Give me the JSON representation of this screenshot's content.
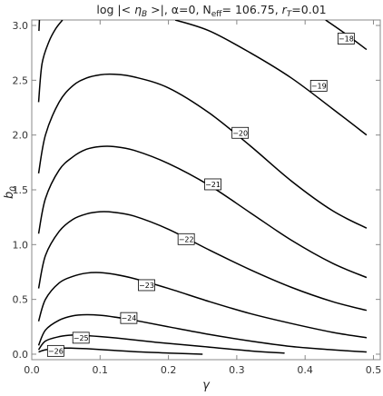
{
  "chart_data": {
    "type": "contour",
    "title": "log |< η_B >|, α=0,  N_eff= 106.75,  r_T=0.01",
    "title_parts": {
      "prefix": "log |< ",
      "eta": "η",
      "eta_sub": "B",
      "middle": " >|, α=0,  N",
      "neff_sub": "eff",
      "neff_val": "= 106.75,  ",
      "r": "r",
      "r_sub": "T",
      "r_val": "=0.01"
    },
    "xlabel": "γ",
    "ylabel": "b",
    "ylabel_sub": "0",
    "xlim": [
      0,
      0.51
    ],
    "ylim": [
      -0.05,
      3.05
    ],
    "xticks": [
      0.0,
      0.1,
      0.2,
      0.3,
      0.4,
      0.5
    ],
    "xtick_labels": [
      "0.0",
      "0.1",
      "0.2",
      "0.3",
      "0.4",
      "0.5"
    ],
    "yticks": [
      0.0,
      0.5,
      1.0,
      1.5,
      2.0,
      2.5,
      3.0
    ],
    "ytick_labels": [
      "0.0",
      "0.5",
      "1.0",
      "1.5",
      "2.0",
      "2.5",
      "3.0"
    ],
    "contours": [
      {
        "level": -26,
        "label": "−26",
        "label_at": [
          0.035,
          0.03
        ],
        "points": [
          [
            0.01,
            0.02
          ],
          [
            0.02,
            0.04
          ],
          [
            0.04,
            0.055
          ],
          [
            0.06,
            0.055
          ],
          [
            0.08,
            0.05
          ],
          [
            0.12,
            0.035
          ],
          [
            0.16,
            0.02
          ],
          [
            0.2,
            0.01
          ],
          [
            0.25,
            0.0
          ]
        ]
      },
      {
        "level": -25,
        "label": "−25",
        "label_at": [
          0.072,
          0.15
        ],
        "points": [
          [
            0.01,
            0.04
          ],
          [
            0.02,
            0.12
          ],
          [
            0.04,
            0.16
          ],
          [
            0.06,
            0.175
          ],
          [
            0.08,
            0.17
          ],
          [
            0.12,
            0.15
          ],
          [
            0.18,
            0.11
          ],
          [
            0.25,
            0.07
          ],
          [
            0.32,
            0.03
          ],
          [
            0.37,
            0.01
          ]
        ]
      },
      {
        "level": -24,
        "label": "−24",
        "label_at": [
          0.142,
          0.33
        ],
        "points": [
          [
            0.01,
            0.08
          ],
          [
            0.02,
            0.22
          ],
          [
            0.04,
            0.31
          ],
          [
            0.06,
            0.35
          ],
          [
            0.08,
            0.36
          ],
          [
            0.1,
            0.355
          ],
          [
            0.12,
            0.34
          ],
          [
            0.15,
            0.31
          ],
          [
            0.2,
            0.25
          ],
          [
            0.26,
            0.18
          ],
          [
            0.32,
            0.12
          ],
          [
            0.38,
            0.07
          ],
          [
            0.44,
            0.04
          ],
          [
            0.49,
            0.02
          ]
        ]
      },
      {
        "level": -23,
        "label": "−23",
        "label_at": [
          0.168,
          0.63
        ],
        "points": [
          [
            0.01,
            0.3
          ],
          [
            0.02,
            0.5
          ],
          [
            0.04,
            0.65
          ],
          [
            0.06,
            0.71
          ],
          [
            0.08,
            0.74
          ],
          [
            0.1,
            0.745
          ],
          [
            0.12,
            0.73
          ],
          [
            0.15,
            0.69
          ],
          [
            0.2,
            0.6
          ],
          [
            0.26,
            0.48
          ],
          [
            0.32,
            0.37
          ],
          [
            0.38,
            0.28
          ],
          [
            0.44,
            0.2
          ],
          [
            0.49,
            0.15
          ]
        ]
      },
      {
        "level": -22,
        "label": "−22",
        "label_at": [
          0.226,
          1.05
        ],
        "points": [
          [
            0.01,
            0.6
          ],
          [
            0.02,
            0.9
          ],
          [
            0.04,
            1.12
          ],
          [
            0.06,
            1.23
          ],
          [
            0.08,
            1.28
          ],
          [
            0.1,
            1.3
          ],
          [
            0.12,
            1.295
          ],
          [
            0.15,
            1.26
          ],
          [
            0.2,
            1.14
          ],
          [
            0.26,
            0.95
          ],
          [
            0.32,
            0.77
          ],
          [
            0.38,
            0.61
          ],
          [
            0.44,
            0.48
          ],
          [
            0.49,
            0.4
          ]
        ]
      },
      {
        "level": -21,
        "label": "−21",
        "label_at": [
          0.265,
          1.55
        ],
        "points": [
          [
            0.01,
            1.1
          ],
          [
            0.02,
            1.42
          ],
          [
            0.04,
            1.68
          ],
          [
            0.06,
            1.8
          ],
          [
            0.08,
            1.87
          ],
          [
            0.1,
            1.895
          ],
          [
            0.12,
            1.895
          ],
          [
            0.15,
            1.86
          ],
          [
            0.2,
            1.74
          ],
          [
            0.26,
            1.54
          ],
          [
            0.32,
            1.29
          ],
          [
            0.38,
            1.04
          ],
          [
            0.44,
            0.83
          ],
          [
            0.49,
            0.7
          ]
        ]
      },
      {
        "level": -20,
        "label": "−20",
        "label_at": [
          0.305,
          2.02
        ],
        "points": [
          [
            0.01,
            1.65
          ],
          [
            0.02,
            2.0
          ],
          [
            0.04,
            2.3
          ],
          [
            0.06,
            2.45
          ],
          [
            0.08,
            2.52
          ],
          [
            0.1,
            2.55
          ],
          [
            0.12,
            2.555
          ],
          [
            0.15,
            2.53
          ],
          [
            0.2,
            2.43
          ],
          [
            0.26,
            2.2
          ],
          [
            0.32,
            1.9
          ],
          [
            0.38,
            1.58
          ],
          [
            0.44,
            1.31
          ],
          [
            0.49,
            1.15
          ]
        ]
      },
      {
        "level": -19,
        "label": "−19",
        "label_at": [
          0.42,
          2.45
        ],
        "points": [
          [
            0.21,
            3.05
          ],
          [
            0.26,
            2.95
          ],
          [
            0.32,
            2.75
          ],
          [
            0.38,
            2.52
          ],
          [
            0.44,
            2.24
          ],
          [
            0.49,
            2.0
          ]
        ]
      },
      {
        "level": -18,
        "label": "−18",
        "label_at": [
          0.46,
          2.88
        ],
        "points": [
          [
            0.43,
            3.05
          ],
          [
            0.46,
            2.92
          ],
          [
            0.49,
            2.78
          ]
        ]
      },
      {
        "level": -26,
        "label": "",
        "label_at": null,
        "points": [
          [
            0.01,
            2.3
          ],
          [
            0.015,
            2.65
          ],
          [
            0.025,
            2.85
          ],
          [
            0.035,
            2.97
          ],
          [
            0.045,
            3.05
          ]
        ]
      },
      {
        "level": -26,
        "label": "",
        "label_at": null,
        "points": [
          [
            0.0105,
            2.95
          ],
          [
            0.0112,
            3.05
          ]
        ]
      }
    ]
  }
}
